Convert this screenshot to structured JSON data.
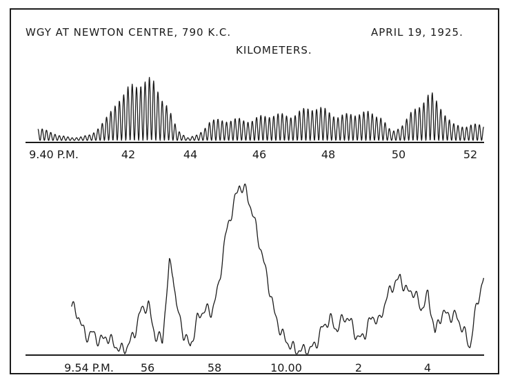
{
  "chart_data": [
    {
      "type": "line",
      "title": "WGY AT NEWTON CENTRE, 790 K.C.",
      "title_right": "APRIL 19, 1925.",
      "subtitle": "KILOMETERS.",
      "xlabel": "",
      "ylabel": "",
      "grid": false,
      "x_units": "minutes after 9.40 P.M.",
      "xlim": [
        0,
        12.7
      ],
      "ylim": [
        0,
        140
      ],
      "tick_labels": [
        {
          "x": 0,
          "label": "9.40 P.M."
        },
        {
          "x": 2,
          "label": "42"
        },
        {
          "x": 4,
          "label": "44"
        },
        {
          "x": 6,
          "label": "46"
        },
        {
          "x": 8,
          "label": "48"
        },
        {
          "x": 10,
          "label": "50"
        },
        {
          "x": 12,
          "label": "52"
        }
      ],
      "envelope": [
        [
          0,
          20
        ],
        [
          0.3,
          15
        ],
        [
          0.6,
          8
        ],
        [
          1.0,
          5
        ],
        [
          1.5,
          10
        ],
        [
          2.0,
          40
        ],
        [
          2.3,
          80
        ],
        [
          2.6,
          100
        ],
        [
          2.9,
          110
        ],
        [
          3.2,
          95
        ],
        [
          3.6,
          60
        ],
        [
          3.9,
          20
        ],
        [
          4.2,
          5
        ],
        [
          4.5,
          10
        ],
        [
          4.8,
          30
        ],
        [
          5.2,
          35
        ],
        [
          5.6,
          40
        ],
        [
          6.0,
          35
        ],
        [
          6.4,
          40
        ],
        [
          6.8,
          45
        ],
        [
          7.2,
          50
        ],
        [
          7.6,
          55
        ],
        [
          8.0,
          50
        ],
        [
          8.4,
          45
        ],
        [
          8.8,
          50
        ],
        [
          9.2,
          45
        ],
        [
          9.6,
          40
        ],
        [
          9.9,
          15
        ],
        [
          10.2,
          30
        ],
        [
          10.5,
          50
        ],
        [
          10.8,
          65
        ],
        [
          11.0,
          75
        ],
        [
          11.3,
          60
        ],
        [
          11.6,
          30
        ],
        [
          12.0,
          25
        ],
        [
          12.4,
          25
        ],
        [
          12.7,
          20
        ]
      ],
      "oscillation_period_min": 0.12
    },
    {
      "type": "line",
      "title": "",
      "xlabel": "",
      "ylabel": "",
      "grid": false,
      "x_units": "minutes after 9.54 P.M.",
      "xlim": [
        -1.9,
        10.9
      ],
      "ylim": [
        0,
        250
      ],
      "tick_labels": [
        {
          "x": 0,
          "label": "9.54 P.M."
        },
        {
          "x": 2,
          "label": "56"
        },
        {
          "x": 4,
          "label": "58"
        },
        {
          "x": 6,
          "label": "10.00"
        },
        {
          "x": 8,
          "label": "2"
        },
        {
          "x": 10,
          "label": "4"
        }
      ],
      "x": [
        -1.9,
        -1.7,
        -1.5,
        -1.3,
        -1.1,
        -0.9,
        -0.7,
        -0.5,
        -0.3,
        -0.1,
        0.1,
        0.3,
        0.5,
        0.7,
        0.9,
        1.0,
        1.1,
        1.3,
        1.5,
        1.7,
        1.9,
        2.1,
        2.3,
        2.5,
        2.7,
        2.9,
        3.1,
        3.3,
        3.5,
        3.7,
        3.9,
        4.1,
        4.3,
        4.5,
        4.7,
        4.9,
        5.1,
        5.3,
        5.5,
        5.7,
        5.9,
        6.1,
        6.3,
        6.5,
        6.7,
        6.9,
        7.1,
        7.3,
        7.5,
        7.7,
        7.9,
        8.1,
        8.3,
        8.5,
        8.7,
        8.9,
        9.1,
        9.3,
        9.5,
        9.7,
        9.9,
        10.1,
        10.3,
        10.5,
        10.7,
        10.9
      ],
      "values": [
        70,
        55,
        25,
        30,
        18,
        25,
        15,
        5,
        10,
        30,
        65,
        70,
        25,
        20,
        130,
        120,
        70,
        30,
        10,
        50,
        65,
        60,
        95,
        170,
        210,
        245,
        235,
        200,
        155,
        110,
        60,
        30,
        15,
        5,
        5,
        5,
        15,
        40,
        50,
        35,
        55,
        45,
        20,
        30,
        55,
        45,
        80,
        100,
        110,
        90,
        90,
        65,
        85,
        30,
        60,
        55,
        55,
        35,
        10,
        75,
        110,
        145,
        70,
        50,
        40,
        55
      ],
      "peaks": [
        {
          "x": 0.65,
          "y": 130
        },
        {
          "x": 3.0,
          "y": 247
        },
        {
          "x": 10.2,
          "y": 155
        }
      ]
    }
  ]
}
